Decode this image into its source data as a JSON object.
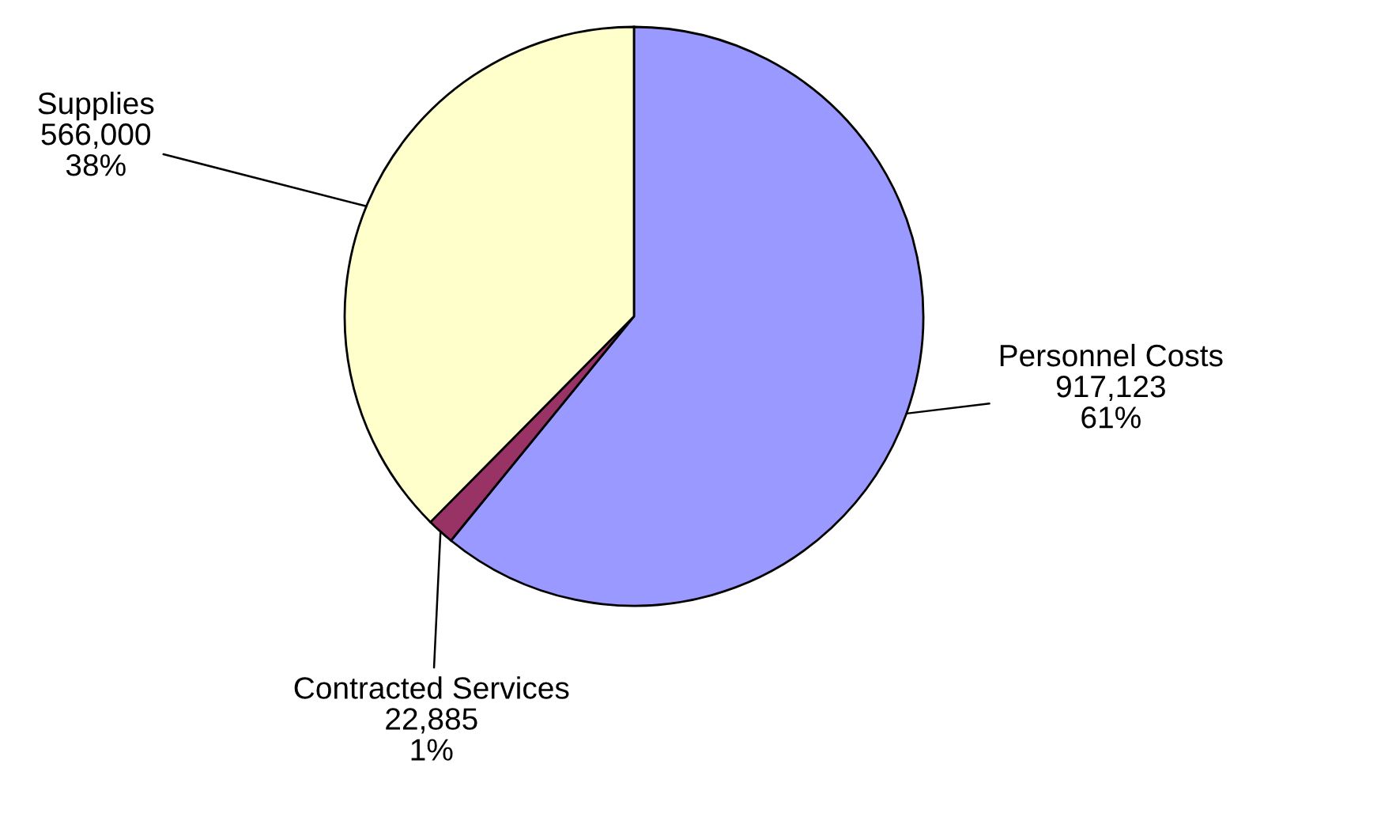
{
  "chart_data": {
    "type": "pie",
    "categories": [
      "Personnel Costs",
      "Contracted Services",
      "Supplies"
    ],
    "values": [
      917123,
      22885,
      566000
    ],
    "colors": [
      "#9999ff",
      "#993366",
      "#ffffcc"
    ],
    "value_labels": [
      "917,123\n61%",
      "22,885\n1%",
      "566,000\n38%"
    ],
    "legend": false
  }
}
